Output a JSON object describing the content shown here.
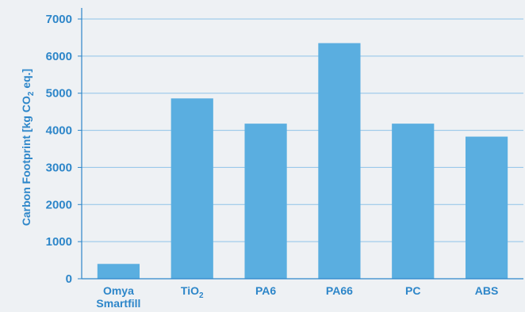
{
  "chart_data": {
    "type": "bar",
    "title": "",
    "xlabel": "",
    "ylabel_parts": {
      "prefix": "Carbon Footprint [kg CO",
      "subscript": "2",
      "suffix": " eq.]"
    },
    "categories": [
      {
        "lines": [
          "Omya",
          "Smartfill"
        ],
        "subscript": ""
      },
      {
        "lines": [
          "TiO"
        ],
        "subscript": "2"
      },
      {
        "lines": [
          "PA6"
        ],
        "subscript": ""
      },
      {
        "lines": [
          "PA66"
        ],
        "subscript": ""
      },
      {
        "lines": [
          "PC"
        ],
        "subscript": ""
      },
      {
        "lines": [
          "ABS"
        ],
        "subscript": ""
      }
    ],
    "values": [
      400,
      4860,
      4180,
      6350,
      4180,
      3830
    ],
    "ylim": [
      0,
      7000
    ],
    "yticks": [
      0,
      1000,
      2000,
      3000,
      4000,
      5000,
      6000,
      7000
    ],
    "grid": true,
    "legend": "none",
    "colors": {
      "bar": "#5aaee0",
      "text": "#2d86c9",
      "grid": "#8fc3e8",
      "axis": "#2d86c9"
    }
  }
}
